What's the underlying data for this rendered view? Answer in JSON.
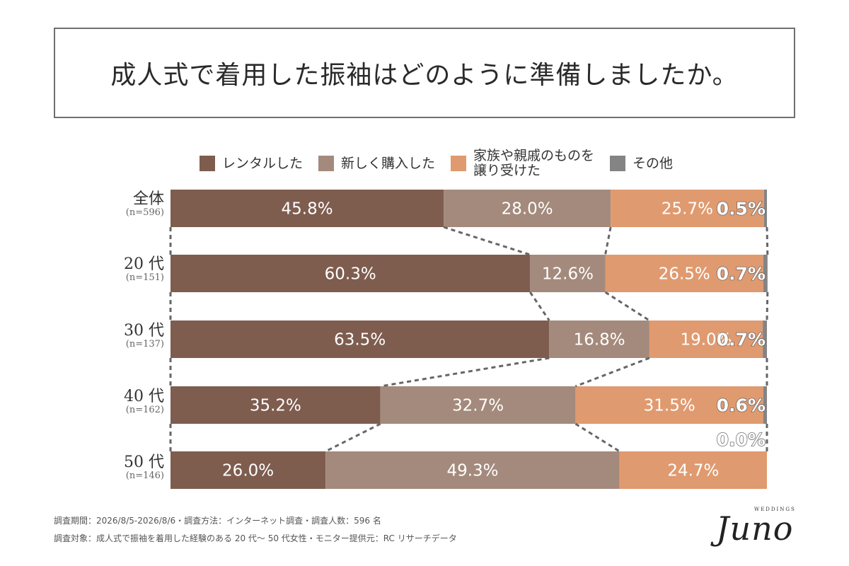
{
  "title": "成人式で着用した振袖はどのように準備しましたか。",
  "colors": {
    "rental": "#7e5d4f",
    "new": "#a48a7c",
    "inherited": "#e09a6f",
    "other": "#848484"
  },
  "chart_data": {
    "type": "bar",
    "orientation": "horizontal",
    "stacked": true,
    "normalized": true,
    "categories": [
      "全体",
      "20 代",
      "30 代",
      "40 代",
      "50 代"
    ],
    "sample_sizes": [
      "(n=596)",
      "(n=151)",
      "(n=137)",
      "(n=162)",
      "(n=146)"
    ],
    "series": [
      {
        "name": "レンタルした",
        "values": [
          45.8,
          60.3,
          63.5,
          35.2,
          26.0
        ],
        "labels": [
          "45.8%",
          "60.3%",
          "63.5%",
          "35.2%",
          "26.0%"
        ]
      },
      {
        "name": "新しく購入した",
        "values": [
          28.0,
          12.6,
          16.8,
          32.7,
          49.3
        ],
        "labels": [
          "28.0%",
          "12.6%",
          "16.8%",
          "32.7%",
          "49.3%"
        ]
      },
      {
        "name": "家族や親戚のものを\n譲り受けた",
        "values": [
          25.7,
          26.5,
          19.0,
          31.5,
          24.7
        ],
        "labels": [
          "25.7%",
          "26.5%",
          "19.0%",
          "31.5%",
          "24.7%"
        ]
      },
      {
        "name": "その他",
        "values": [
          0.5,
          0.7,
          0.7,
          0.6,
          0.0
        ],
        "labels": [
          "0.5%",
          "0.7%",
          "0.7%",
          "0.6%",
          "0.0%"
        ]
      }
    ],
    "xlim": [
      0,
      100
    ],
    "legend": "top"
  },
  "footnotes": [
    "調査期間：2026/8/5-2026/8/6・調査方法：インターネット調査・調査人数：596 名",
    "調査対象：成人式で振袖を着用した経験のある 20 代〜 50 代女性・モニター提供元：RC リサーチデータ"
  ],
  "logo": {
    "small": "WEDDINGS",
    "main": "Juno"
  }
}
